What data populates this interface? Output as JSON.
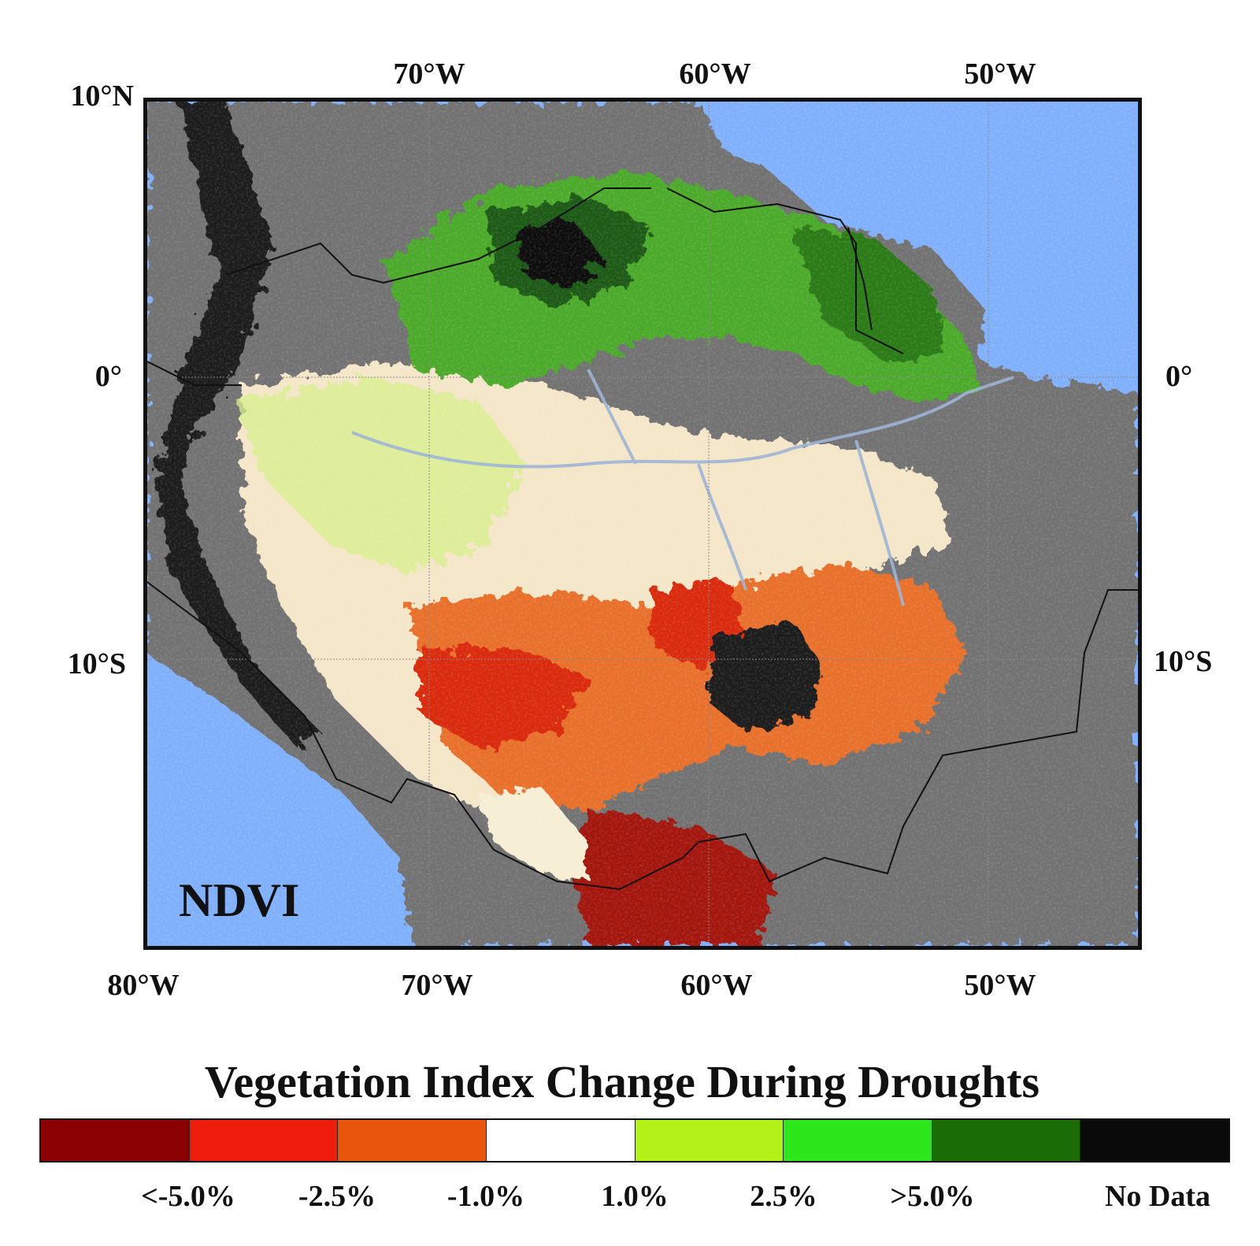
{
  "axes": {
    "top_lon_labels": [
      "70°W",
      "60°W",
      "50°W"
    ],
    "bottom_lon_labels": [
      "80°W",
      "70°W",
      "60°W",
      "50°W"
    ],
    "left_lat_labels": [
      "10°N",
      "0°",
      "10°S"
    ],
    "right_lat_labels": [
      "0°",
      "10°S"
    ]
  },
  "map": {
    "panel_label": "NDVI",
    "ocean_color": "#80b0fc",
    "land_color": "#727272",
    "border_color": "#111111"
  },
  "colorbar": {
    "title": "Vegetation Index Change During Droughts",
    "classes": [
      {
        "color": "#8b0000"
      },
      {
        "color": "#ee1c0a"
      },
      {
        "color": "#e8560b"
      },
      {
        "color": "#ffffff"
      },
      {
        "color": "#b3f218"
      },
      {
        "color": "#2ee71a"
      },
      {
        "color": "#1a6c07"
      },
      {
        "color": "#0a0a0a"
      }
    ],
    "labels": [
      "<-5.0%",
      "-2.5%",
      "-1.0%",
      "1.0%",
      "2.5%",
      ">5.0%",
      "No Data"
    ]
  }
}
